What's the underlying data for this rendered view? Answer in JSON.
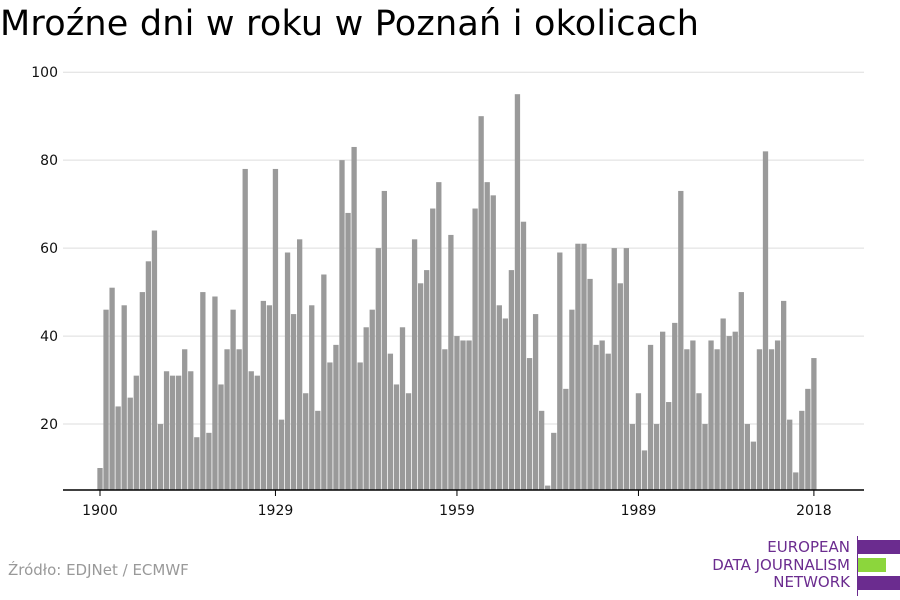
{
  "title": "Mroźne dni w roku w Poznań i okolicach",
  "source": "Źródło: EDJNet / ECMWF",
  "logo": {
    "lines": [
      "EUROPEAN",
      "DATA JOURNALISM",
      "NETWORK"
    ],
    "colors": {
      "text": "#6b2c8f",
      "bar_top": "#6b2c8f",
      "bar_mid": "#8cd63c",
      "bar_bottom": "#6b2c8f"
    }
  },
  "colors": {
    "bar": "#9a9a9a",
    "grid": "#dddddd",
    "axis": "#000000",
    "text": "#111111"
  },
  "chart_data": {
    "type": "bar",
    "title": "Mroźne dni w roku w Poznań i okolicach",
    "xlabel": "",
    "ylabel": "",
    "x_tick_labels": [
      "1900",
      "1929",
      "1959",
      "1989",
      "2018"
    ],
    "y_tick_labels": [
      "20",
      "40",
      "60",
      "80",
      "100"
    ],
    "ylim": [
      5,
      103
    ],
    "grid": true,
    "legend": "none",
    "categories": [
      1900,
      1901,
      1902,
      1903,
      1904,
      1905,
      1906,
      1907,
      1908,
      1909,
      1910,
      1911,
      1912,
      1913,
      1914,
      1915,
      1916,
      1917,
      1918,
      1919,
      1920,
      1921,
      1922,
      1923,
      1924,
      1925,
      1926,
      1927,
      1928,
      1929,
      1930,
      1931,
      1932,
      1933,
      1934,
      1935,
      1936,
      1937,
      1938,
      1939,
      1940,
      1941,
      1942,
      1943,
      1944,
      1945,
      1946,
      1947,
      1948,
      1949,
      1950,
      1951,
      1952,
      1953,
      1954,
      1955,
      1956,
      1957,
      1958,
      1959,
      1960,
      1961,
      1962,
      1963,
      1964,
      1965,
      1966,
      1967,
      1968,
      1969,
      1970,
      1971,
      1972,
      1973,
      1974,
      1975,
      1976,
      1977,
      1978,
      1979,
      1980,
      1981,
      1982,
      1983,
      1984,
      1985,
      1986,
      1987,
      1988,
      1989,
      1990,
      1991,
      1992,
      1993,
      1994,
      1995,
      1996,
      1997,
      1998,
      1999,
      2000,
      2001,
      2002,
      2003,
      2004,
      2005,
      2006,
      2007,
      2008,
      2009,
      2010,
      2011,
      2012,
      2013,
      2014,
      2015,
      2016,
      2017,
      2018
    ],
    "values": [
      10,
      46,
      51,
      24,
      47,
      26,
      31,
      50,
      57,
      64,
      20,
      32,
      31,
      31,
      37,
      32,
      17,
      50,
      18,
      49,
      29,
      37,
      46,
      37,
      78,
      32,
      31,
      48,
      47,
      78,
      21,
      59,
      45,
      62,
      27,
      47,
      23,
      54,
      34,
      38,
      80,
      68,
      83,
      34,
      42,
      46,
      60,
      73,
      36,
      29,
      42,
      27,
      62,
      52,
      55,
      69,
      75,
      37,
      63,
      40,
      39,
      39,
      69,
      90,
      75,
      72,
      47,
      44,
      55,
      95,
      66,
      35,
      45,
      23,
      6,
      18,
      59,
      28,
      46,
      61,
      61,
      53,
      38,
      39,
      36,
      60,
      52,
      60,
      20,
      27,
      14,
      38,
      20,
      41,
      25,
      43,
      73,
      37,
      39,
      27,
      20,
      39,
      37,
      44,
      40,
      41,
      50,
      20,
      16,
      37,
      82,
      37,
      39,
      48,
      21,
      9,
      23,
      28,
      35
    ]
  }
}
